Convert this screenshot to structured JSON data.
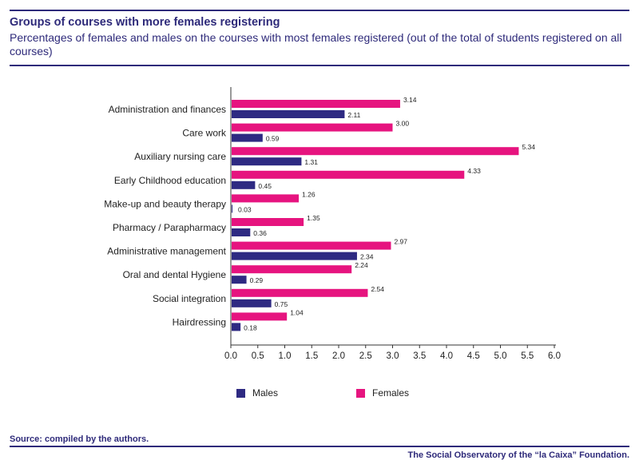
{
  "header": {
    "title": "Groups of courses with more females registering",
    "subtitle": "Percentages of females and males on the courses with most females registered (out of the total of students registered on all courses)"
  },
  "footer": {
    "source": "Source:  compiled by the authors.",
    "credit": "The Social Observatory of the “la Caixa” Foundation."
  },
  "colors": {
    "accent": "#2e2a7a",
    "males": "#2e2a82",
    "females": "#e6147f"
  },
  "legend": {
    "males": "Males",
    "females": "Females"
  },
  "chart_data": {
    "type": "bar",
    "orientation": "horizontal",
    "categories": [
      "Administration and finances",
      "Care work",
      "Auxiliary nursing care",
      "Early Childhood education",
      "Make-up and beauty therapy",
      "Pharmacy / Parapharmacy",
      "Administrative management",
      "Oral and dental Hygiene",
      "Social integration",
      "Hairdressing"
    ],
    "series": [
      {
        "name": "Females",
        "values": [
          3.14,
          3.0,
          5.34,
          4.33,
          1.26,
          1.35,
          2.97,
          2.24,
          2.54,
          1.04
        ],
        "labels": [
          "3.14",
          "3.00",
          "5.34",
          "4.33",
          "1.26",
          "1.35",
          "2.97",
          "2.24",
          "2.54",
          "1.04"
        ]
      },
      {
        "name": "Males",
        "values": [
          2.11,
          0.59,
          1.31,
          0.45,
          0.03,
          0.36,
          2.34,
          0.29,
          0.75,
          0.18
        ],
        "labels": [
          "2.11",
          "0.59",
          "1.31",
          "0.45",
          "0.03",
          "0.36",
          "2.34",
          "0.29",
          "0.75",
          "0.18"
        ]
      }
    ],
    "xlim": [
      0,
      6.0
    ],
    "xticks": [
      "0.0",
      "0.5",
      "1.0",
      "1.5",
      "2.0",
      "2.5",
      "3.0",
      "3.5",
      "4.0",
      "4.5",
      "5.0",
      "5.5",
      "6.0"
    ],
    "grid": false,
    "legend_position": "bottom"
  }
}
